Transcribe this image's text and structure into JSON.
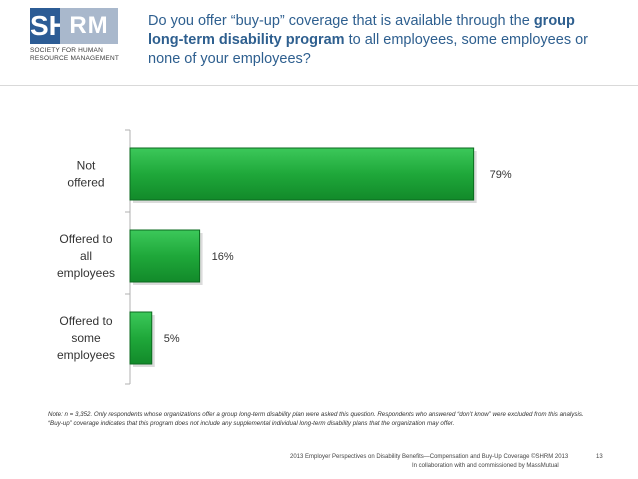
{
  "logo": {
    "mark_left": "SH",
    "mark_right": "RM",
    "registered": "®",
    "text_lines": [
      "SOCIETY FOR HUMAN",
      "RESOURCE MANAGEMENT"
    ]
  },
  "header": {
    "title_part1": "Do you offer “buy-up” coverage that is available through the ",
    "title_bold": "group long-term disability program",
    "title_part2": " to all employees, some employees or none of your employees?"
  },
  "chart_data": {
    "type": "bar",
    "orientation": "horizontal",
    "categories": [
      "Not offered",
      "Offered to all employees",
      "Offered to some employees"
    ],
    "category_lines": [
      [
        "Not",
        "offered"
      ],
      [
        "Offered to",
        "all",
        "employees"
      ],
      [
        "Offered to",
        "some",
        "employees"
      ]
    ],
    "values": [
      79,
      16,
      5
    ],
    "value_labels": [
      "79%",
      "16%",
      "5%"
    ],
    "xlim": [
      0,
      100
    ],
    "bar_color": "#1fa83a",
    "bar_border": "#0b6a1f",
    "grid": false
  },
  "note": "Note: n = 3,352. Only respondents whose organizations offer a group long-term disability plan were asked this question. Respondents who answered “don’t know” were excluded from this analysis. “Buy-up” coverage indicates that this program does not include any supplemental individual long-term disability plans that the organization may offer.",
  "footer": {
    "line1": "2013 Employer Perspectives on Disability Benefits—Compensation and Buy-Up Coverage ©SHRM 2013",
    "line2": "In collaboration with and commissioned by MassMutual",
    "page": "13"
  }
}
